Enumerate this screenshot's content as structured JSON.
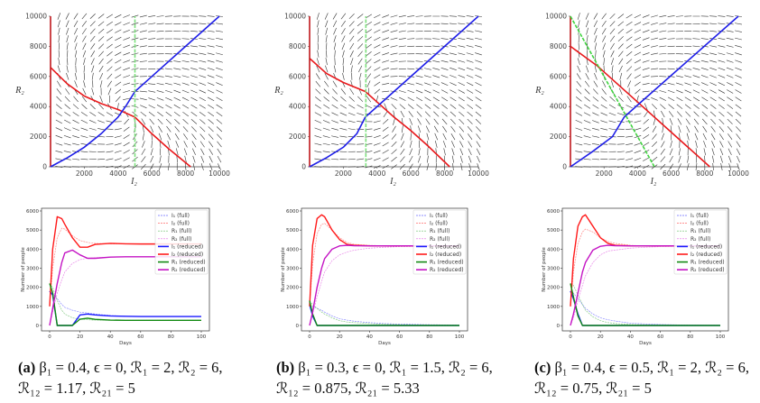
{
  "chart_data": [
    {
      "type": "line",
      "panel": "a-phase",
      "xlabel": "I₂",
      "ylabel": "R₂",
      "xlim": [
        0,
        10000
      ],
      "ylim": [
        0,
        10000
      ],
      "xticks": [
        "2000",
        "4000",
        "6000",
        "8000",
        "10000"
      ],
      "yticks": [
        "0",
        "2000",
        "4000",
        "6000",
        "8000",
        "10000"
      ],
      "equilibrium": [
        4300,
        3600
      ],
      "series": [
        {
          "name": "red-nullcline",
          "color": "#e8191c",
          "points": [
            [
              0,
              6600
            ],
            [
              1000,
              5500
            ],
            [
              2000,
              4700
            ],
            [
              3000,
              4200
            ],
            [
              4000,
              3800
            ],
            [
              5000,
              3300
            ],
            [
              6000,
              2200
            ],
            [
              7000,
              1200
            ],
            [
              8300,
              0
            ]
          ]
        },
        {
          "name": "red-axis",
          "color": "#c0181c",
          "points": [
            [
              0,
              0
            ],
            [
              0,
              10000
            ]
          ]
        },
        {
          "name": "blue-nullcline",
          "color": "#1f1fe8",
          "points": [
            [
              0,
              0
            ],
            [
              1000,
              600
            ],
            [
              2000,
              1300
            ],
            [
              3000,
              2200
            ],
            [
              4000,
              3300
            ],
            [
              4500,
              4100
            ],
            [
              5000,
              5000
            ],
            [
              6000,
              6000
            ],
            [
              8000,
              8000
            ],
            [
              10000,
              10000
            ]
          ]
        },
        {
          "name": "green-threshold",
          "color": "#7ee07e",
          "dashed": true,
          "points": [
            [
              5000,
              0
            ],
            [
              5000,
              10000
            ]
          ]
        }
      ]
    },
    {
      "type": "line",
      "panel": "b-phase",
      "xlabel": "I₂",
      "ylabel": "R₂",
      "xlim": [
        0,
        10000
      ],
      "ylim": [
        0,
        10000
      ],
      "xticks": [
        "2000",
        "4000",
        "6000",
        "8000",
        "10000"
      ],
      "yticks": [
        "0",
        "2000",
        "4000",
        "6000",
        "8000",
        "10000"
      ],
      "equilibrium": [
        4200,
        4200
      ],
      "series": [
        {
          "name": "red-nullcline",
          "color": "#e8191c",
          "points": [
            [
              0,
              7200
            ],
            [
              1000,
              6200
            ],
            [
              2000,
              5600
            ],
            [
              3300,
              5000
            ],
            [
              4000,
              4300
            ],
            [
              5000,
              3300
            ],
            [
              6000,
              2400
            ],
            [
              7000,
              1400
            ],
            [
              8300,
              0
            ]
          ]
        },
        {
          "name": "red-axis",
          "color": "#c0181c",
          "points": [
            [
              0,
              0
            ],
            [
              0,
              10000
            ]
          ]
        },
        {
          "name": "blue-nullcline",
          "color": "#1f1fe8",
          "points": [
            [
              0,
              0
            ],
            [
              1000,
              600
            ],
            [
              2000,
              1300
            ],
            [
              2800,
              2200
            ],
            [
              3300,
              3300
            ],
            [
              4200,
              4200
            ],
            [
              10000,
              10000
            ]
          ]
        },
        {
          "name": "green-threshold",
          "color": "#7ee07e",
          "dashed": true,
          "points": [
            [
              3333,
              0
            ],
            [
              3333,
              10000
            ]
          ]
        }
      ]
    },
    {
      "type": "line",
      "panel": "c-phase",
      "xlabel": "I₂",
      "ylabel": "R₂",
      "xlim": [
        0,
        10000
      ],
      "ylim": [
        0,
        10000
      ],
      "xticks": [
        "2000",
        "4000",
        "6000",
        "8000",
        "10000"
      ],
      "yticks": [
        "0",
        "2000",
        "4000",
        "6000",
        "8000",
        "10000"
      ],
      "equilibrium": [
        4200,
        4200
      ],
      "series": [
        {
          "name": "red-nullcline",
          "color": "#e8191c",
          "points": [
            [
              0,
              8000
            ],
            [
              1600,
              6700
            ],
            [
              2000,
              6300
            ],
            [
              4000,
              4300
            ],
            [
              8300,
              0
            ]
          ]
        },
        {
          "name": "red-axis",
          "color": "#c0181c",
          "points": [
            [
              0,
              0
            ],
            [
              0,
              10000
            ]
          ]
        },
        {
          "name": "blue-nullcline",
          "color": "#1f1fe8",
          "points": [
            [
              0,
              0
            ],
            [
              1300,
              1000
            ],
            [
              2500,
              2000
            ],
            [
              3200,
              3300
            ],
            [
              4100,
              4200
            ],
            [
              10000,
              10000
            ]
          ]
        },
        {
          "name": "green-threshold",
          "color": "#3fd33f",
          "dashed": true,
          "points": [
            [
              0,
              10000
            ],
            [
              5000,
              0
            ]
          ]
        }
      ]
    },
    {
      "type": "line",
      "panel": "a-time",
      "xlabel": "Days",
      "ylabel": "Number of people",
      "xlim": [
        0,
        100
      ],
      "ylim": [
        0,
        6000
      ],
      "xticks": [
        "0",
        "20",
        "40",
        "60",
        "80",
        "100"
      ],
      "yticks": [
        "0",
        "1000",
        "2000",
        "3000",
        "4000",
        "5000",
        "6000"
      ],
      "x": [
        0,
        2,
        5,
        8,
        10,
        15,
        20,
        25,
        30,
        40,
        50,
        60,
        80,
        100
      ],
      "series": [
        {
          "name": "I₁ (full)",
          "color": "#6b6bff",
          "dashed": true,
          "values": [
            1800,
            1700,
            1400,
            1100,
            950,
            800,
            700,
            650,
            600,
            520,
            480,
            470,
            470,
            470
          ]
        },
        {
          "name": "I₂ (full)",
          "color": "#ff6b6b",
          "dashed": true,
          "values": [
            1000,
            3000,
            4600,
            5100,
            5050,
            4700,
            4450,
            4350,
            4300,
            4280,
            4270,
            4270,
            4270,
            4270
          ]
        },
        {
          "name": "R₁ (full)",
          "color": "#6bbf6b",
          "dashed": true,
          "values": [
            2200,
            2000,
            1300,
            800,
            600,
            400,
            330,
            300,
            280,
            270,
            270,
            270,
            270,
            270
          ]
        },
        {
          "name": "R₂ (full)",
          "color": "#e36be3",
          "dashed": true,
          "values": [
            0,
            700,
            1700,
            2400,
            2800,
            3250,
            3450,
            3520,
            3550,
            3580,
            3600,
            3600,
            3600,
            3600
          ]
        },
        {
          "name": "I₁ (reduced)",
          "color": "#1a1aff",
          "values": [
            1800,
            1600,
            0,
            0,
            0,
            0,
            550,
            600,
            550,
            500,
            480,
            470,
            470,
            470
          ]
        },
        {
          "name": "I₂ (reduced)",
          "color": "#ff1a1a",
          "values": [
            1000,
            4000,
            5700,
            5600,
            5300,
            4600,
            4100,
            4100,
            4250,
            4300,
            4280,
            4270,
            4270,
            4270
          ]
        },
        {
          "name": "R₁ (reduced)",
          "color": "#138a13",
          "values": [
            2200,
            1700,
            0,
            0,
            0,
            0,
            330,
            380,
            320,
            280,
            270,
            270,
            270,
            270
          ]
        },
        {
          "name": "R₂ (reduced)",
          "color": "#c414c4",
          "values": [
            0,
            900,
            2200,
            3300,
            3800,
            3950,
            3700,
            3520,
            3520,
            3580,
            3600,
            3600,
            3600,
            3600
          ]
        }
      ]
    },
    {
      "type": "line",
      "panel": "b-time",
      "xlabel": "Days",
      "ylabel": "Number of people",
      "xlim": [
        0,
        100
      ],
      "ylim": [
        0,
        6000
      ],
      "xticks": [
        "0",
        "20",
        "40",
        "60",
        "80",
        "100"
      ],
      "yticks": [
        "0",
        "1000",
        "2000",
        "3000",
        "4000",
        "5000",
        "6000"
      ],
      "x": [
        0,
        2,
        5,
        8,
        10,
        15,
        20,
        25,
        30,
        40,
        50,
        60,
        80,
        100
      ],
      "series": [
        {
          "name": "I₁ (full)",
          "color": "#6b6bff",
          "dashed": true,
          "values": [
            1100,
            1000,
            900,
            800,
            700,
            500,
            350,
            280,
            220,
            150,
            100,
            70,
            40,
            20
          ]
        },
        {
          "name": "I₂ (full)",
          "color": "#ff6b6b",
          "dashed": true,
          "values": [
            1000,
            3200,
            4800,
            5300,
            5350,
            5000,
            4600,
            4350,
            4250,
            4200,
            4180,
            4170,
            4170,
            4170
          ]
        },
        {
          "name": "R₁ (full)",
          "color": "#6bbf6b",
          "dashed": true,
          "values": [
            1300,
            1100,
            900,
            700,
            600,
            400,
            250,
            180,
            150,
            100,
            60,
            40,
            20,
            10
          ]
        },
        {
          "name": "R₂ (full)",
          "color": "#e36be3",
          "dashed": true,
          "values": [
            0,
            600,
            1500,
            2300,
            2800,
            3400,
            3700,
            3850,
            3950,
            4050,
            4100,
            4130,
            4150,
            4160
          ]
        },
        {
          "name": "I₁ (reduced)",
          "color": "#1a1aff",
          "values": [
            1100,
            500,
            0,
            0,
            0,
            0,
            0,
            0,
            0,
            0,
            0,
            0,
            0,
            0
          ]
        },
        {
          "name": "I₂ (reduced)",
          "color": "#ff1a1a",
          "values": [
            1000,
            4200,
            5600,
            5800,
            5700,
            5000,
            4500,
            4250,
            4200,
            4170,
            4170,
            4170,
            4170,
            4170
          ]
        },
        {
          "name": "R₁ (reduced)",
          "color": "#138a13",
          "values": [
            1300,
            600,
            0,
            0,
            0,
            0,
            0,
            0,
            0,
            0,
            0,
            0,
            0,
            0
          ]
        },
        {
          "name": "R₂ (reduced)",
          "color": "#c414c4",
          "values": [
            0,
            700,
            2000,
            3000,
            3500,
            4000,
            4170,
            4200,
            4180,
            4170,
            4170,
            4170,
            4170,
            4170
          ]
        }
      ]
    },
    {
      "type": "line",
      "panel": "c-time",
      "xlabel": "Days",
      "ylabel": "Number of people",
      "xlim": [
        0,
        100
      ],
      "ylim": [
        0,
        6000
      ],
      "xticks": [
        "0",
        "20",
        "40",
        "60",
        "80",
        "100"
      ],
      "yticks": [
        "0",
        "1000",
        "2000",
        "3000",
        "4000",
        "5000",
        "6000"
      ],
      "x": [
        0,
        2,
        5,
        8,
        10,
        15,
        20,
        25,
        30,
        40,
        50,
        60,
        80,
        100
      ],
      "series": [
        {
          "name": "I₁ (full)",
          "color": "#6b6bff",
          "dashed": true,
          "values": [
            1800,
            1700,
            1400,
            1100,
            900,
            600,
            400,
            300,
            230,
            120,
            80,
            50,
            20,
            10
          ]
        },
        {
          "name": "I₂ (full)",
          "color": "#ff6b6b",
          "dashed": true,
          "values": [
            1000,
            2800,
            4300,
            4900,
            5050,
            4900,
            4600,
            4400,
            4300,
            4200,
            4170,
            4170,
            4170,
            4170
          ]
        },
        {
          "name": "R₁ (full)",
          "color": "#6bbf6b",
          "dashed": true,
          "values": [
            2200,
            2100,
            1600,
            1100,
            800,
            450,
            250,
            150,
            100,
            50,
            30,
            20,
            10,
            5
          ]
        },
        {
          "name": "R₂ (full)",
          "color": "#e36be3",
          "dashed": true,
          "values": [
            0,
            400,
            1300,
            2100,
            2600,
            3300,
            3700,
            3900,
            3950,
            4050,
            4100,
            4130,
            4150,
            4160
          ]
        },
        {
          "name": "I₁ (reduced)",
          "color": "#1a1aff",
          "values": [
            1800,
            1400,
            600,
            0,
            0,
            0,
            0,
            0,
            0,
            0,
            0,
            0,
            0,
            0
          ]
        },
        {
          "name": "I₂ (reduced)",
          "color": "#ff1a1a",
          "values": [
            1000,
            3500,
            5200,
            5700,
            5800,
            5200,
            4600,
            4300,
            4200,
            4170,
            4170,
            4170,
            4170,
            4170
          ]
        },
        {
          "name": "R₁ (reduced)",
          "color": "#138a13",
          "values": [
            2200,
            1500,
            500,
            0,
            0,
            0,
            0,
            0,
            0,
            0,
            0,
            0,
            0,
            0
          ]
        },
        {
          "name": "R₂ (reduced)",
          "color": "#c414c4",
          "values": [
            0,
            600,
            1700,
            2800,
            3300,
            3950,
            4150,
            4200,
            4180,
            4170,
            4170,
            4170,
            4170,
            4170
          ]
        }
      ]
    }
  ],
  "captions": [
    {
      "label": "(a)",
      "text": "β₁ = 0.4, ϵ = 0, ℛ₁ = 2, ℛ₂ = 6, ℛ₁₂ = 1.17, ℛ₂₁ = 5"
    },
    {
      "label": "(b)",
      "text": "β₁ = 0.3, ϵ = 0, ℛ₁ = 1.5, ℛ₂ = 6, ℛ₁₂ = 0.875, ℛ₂₁ = 5.33"
    },
    {
      "label": "(c)",
      "text": "β₁ = 0.4, ϵ = 0.5, ℛ₁ = 2, ℛ₂ = 6, ℛ₁₂ = 0.75, ℛ₂₁ = 5"
    }
  ]
}
